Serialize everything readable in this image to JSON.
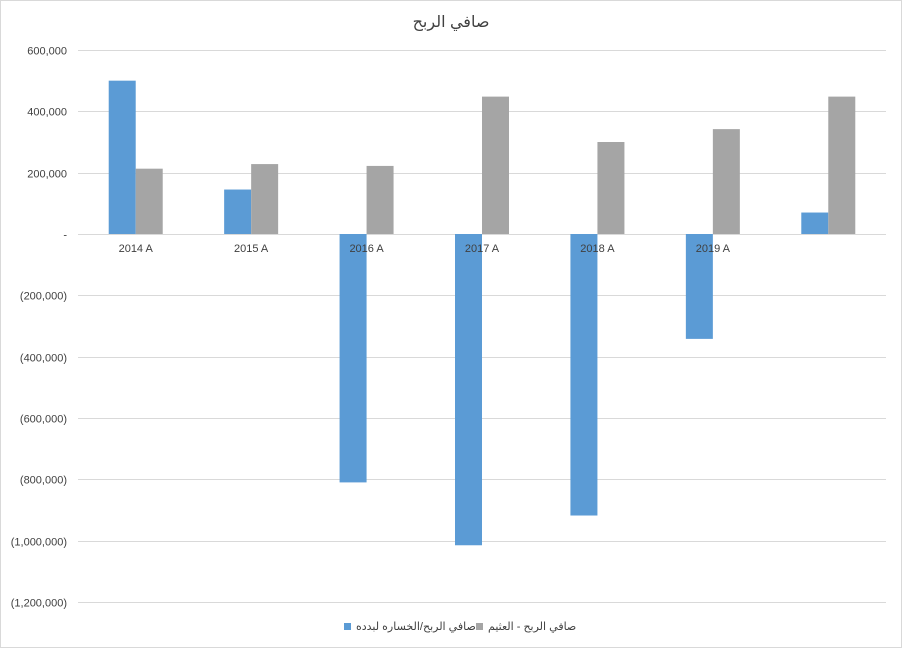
{
  "chart_data": {
    "type": "bar",
    "title": "صافي الربح",
    "categories": [
      "2014 A",
      "2015 A",
      "2016 A",
      "2017 A",
      "2018 A",
      "2019 A",
      ""
    ],
    "series": [
      {
        "name": "صافي الربح/الخساره لبدده",
        "color": "#5b9bd5",
        "values": [
          500000,
          145000,
          -810000,
          -1015000,
          -918000,
          -342000,
          70000
        ]
      },
      {
        "name": "صافي الربح - العثيم",
        "color": "#a5a5a5",
        "values": [
          213000,
          228000,
          222000,
          448000,
          300000,
          342000,
          448000
        ]
      }
    ],
    "y_ticks": [
      600000,
      400000,
      200000,
      0,
      -200000,
      -400000,
      -600000,
      -800000,
      -1000000,
      -1200000
    ],
    "y_tick_labels": [
      "600,000",
      "400,000",
      "200,000",
      "-",
      "(200,000)",
      "(400,000)",
      "(600,000)",
      "(800,000)",
      "(1,000,000)",
      "(1,200,000)"
    ],
    "ylim": [
      -1200000,
      600000
    ],
    "grid": true,
    "legend": "bottom"
  }
}
